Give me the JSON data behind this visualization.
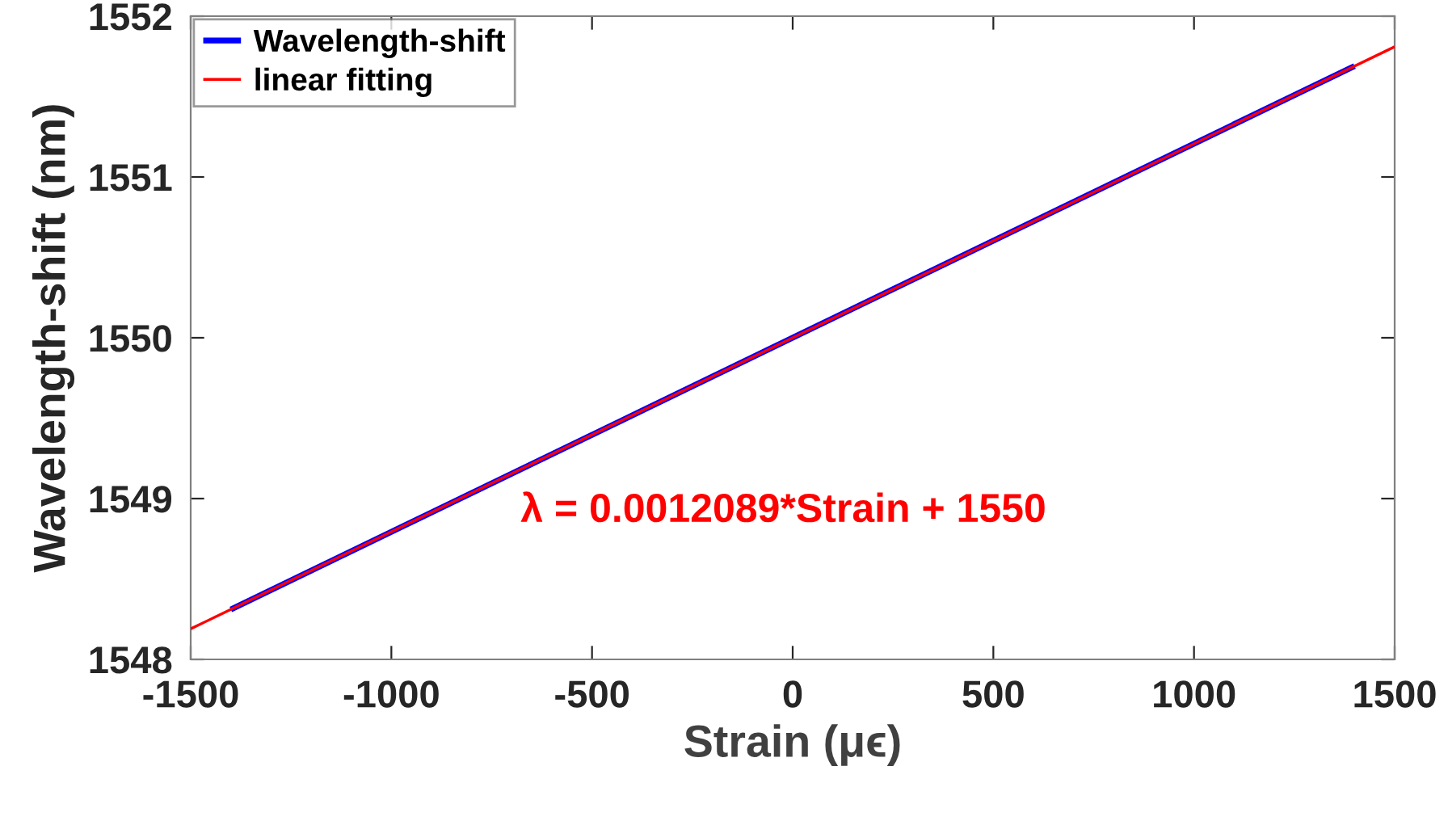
{
  "chart_data": {
    "type": "line",
    "xlabel": "Strain (μϵ)",
    "ylabel": "Wavelength-shift (nm)",
    "series": [
      {
        "name": "Wavelength-shift",
        "color": "#0000ff",
        "x": [
          -1400,
          1400
        ],
        "values": [
          1548.31,
          1551.69
        ]
      },
      {
        "name": "linear fitting",
        "color": "#ff0000",
        "x": [
          -1500,
          1500
        ],
        "values": [
          1548.19,
          1551.81
        ]
      }
    ],
    "annotations": [
      "λ = 0.0012089*Strain + 1550"
    ],
    "xlim": [
      -1500,
      1500
    ],
    "xticks": [
      -1500,
      -1000,
      -500,
      0,
      500,
      1000,
      1500
    ],
    "ylim": [
      1548,
      1552
    ],
    "yticks": [
      1548,
      1549,
      1550,
      1551,
      1552
    ],
    "grid": false,
    "legend": "top left",
    "marker": "none",
    "line_style": "solid"
  }
}
